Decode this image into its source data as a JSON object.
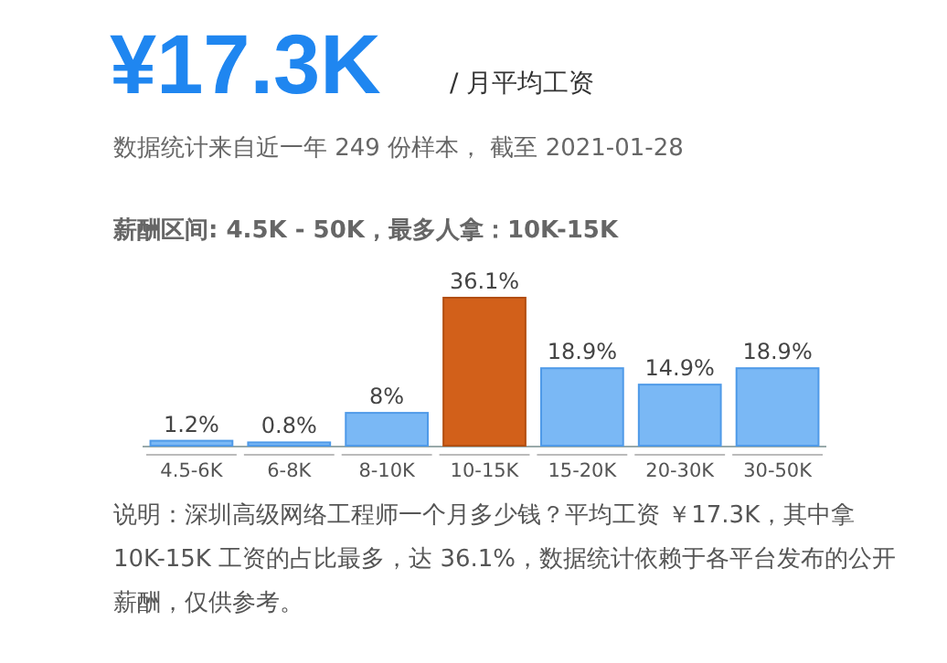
{
  "chart_data": {
    "type": "bar",
    "title": "¥17.3K",
    "subtitle": "/ 月平均工资",
    "annotations": [
      "数据统计来自近一年 249 份样本， 截至 2021-01-28",
      "**薪酬区间: 4.5K - 50K，最多人拿：10K-15K**",
      "说明：深圳高级网络工程师一个月多少钱？平均工资 ￥17.3K，其中拿 10K-15K 工资的占比最多，达 36.1%，数据统计依赖于各平台发布的公开薪酬，仅供参考。"
    ],
    "categories": [
      "4.5-6K",
      "6-8K",
      "8-10K",
      "10-15K",
      "15-20K",
      "20-30K",
      "30-50K"
    ],
    "values": [
      1.2,
      0.8,
      8,
      36.1,
      18.9,
      14.9,
      18.9
    ],
    "value_labels": [
      "1.2%",
      "0.8%",
      "8%",
      "36.1%",
      "18.9%",
      "14.9%",
      "18.9%"
    ],
    "colors": [
      "#7ab8f5",
      "#7ab8f5",
      "#7ab8f5",
      "#d2601a",
      "#7ab8f5",
      "#7ab8f5",
      "#7ab8f5"
    ]
  }
}
